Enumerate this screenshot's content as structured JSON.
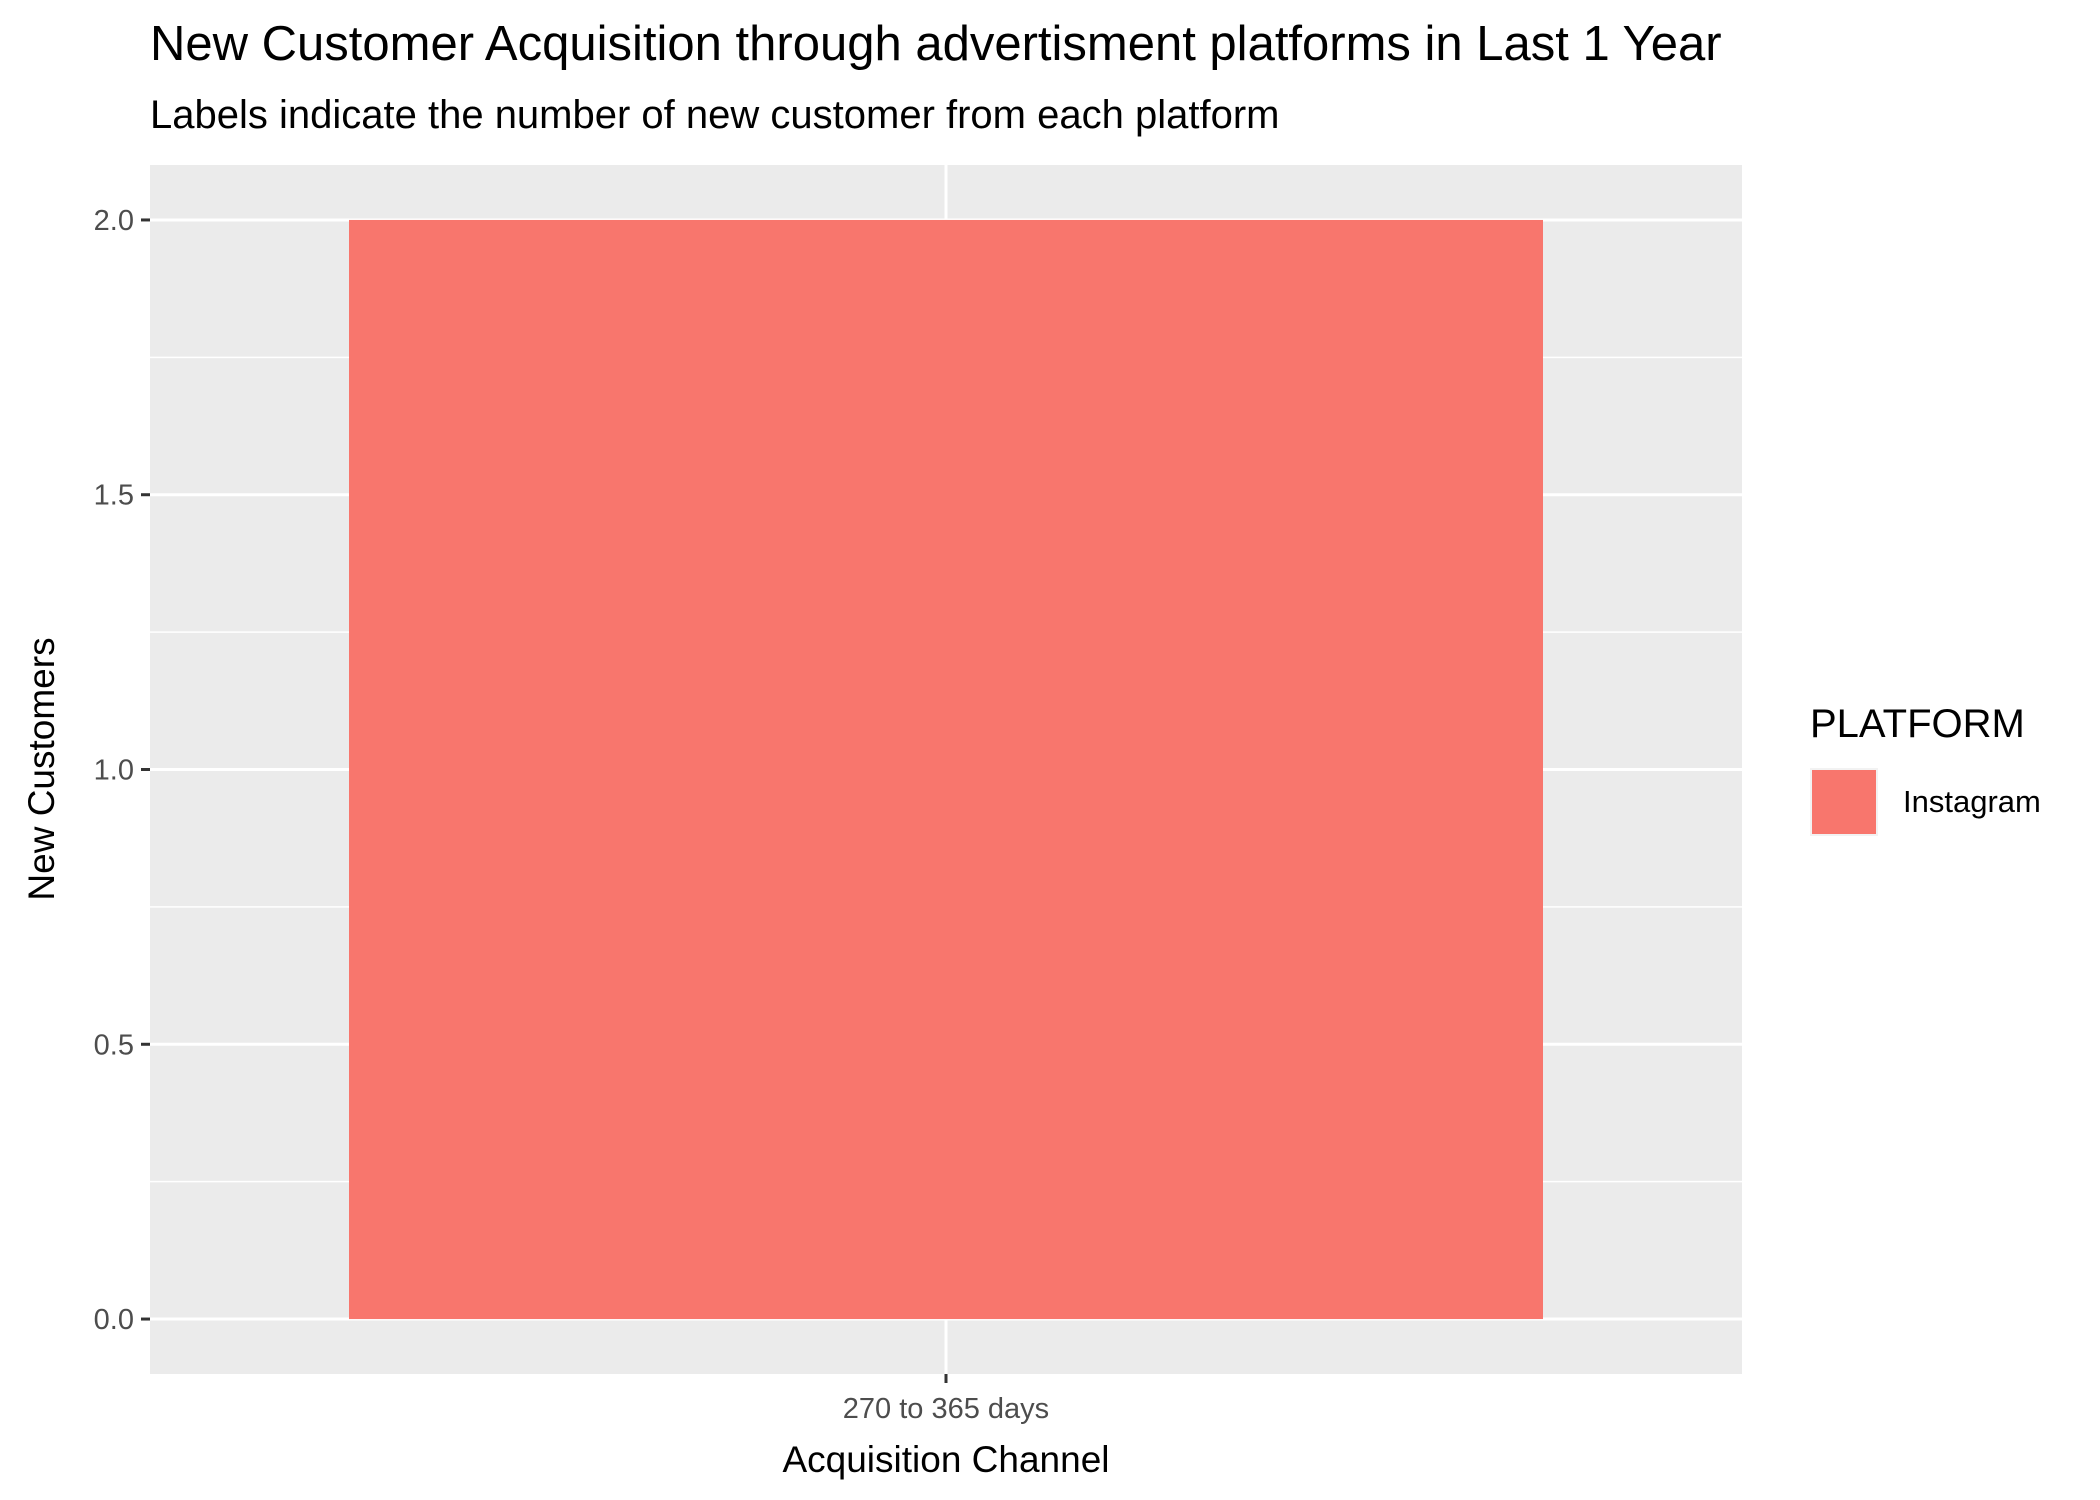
{
  "chart_data": {
    "type": "bar",
    "title": "New Customer Acquisition through advertisment platforms in Last 1 Year",
    "subtitle": "Labels indicate the number of new customer from each platform",
    "xlabel": "Acquisition Channel",
    "ylabel": "New Customers",
    "categories": [
      "270 to 365 days"
    ],
    "series": [
      {
        "name": "Instagram",
        "values": [
          2
        ],
        "color": "#F8766D"
      }
    ],
    "ylim": [
      -0.1,
      2.1
    ],
    "yticks": [
      0.0,
      0.5,
      1.0,
      1.5,
      2.0
    ],
    "ytick_labels": [
      "0.0",
      "0.5",
      "1.0",
      "1.5",
      "2.0"
    ],
    "grid": true,
    "panel_background": "#EBEBEB",
    "legend": {
      "title": "PLATFORM",
      "position": "right"
    }
  }
}
